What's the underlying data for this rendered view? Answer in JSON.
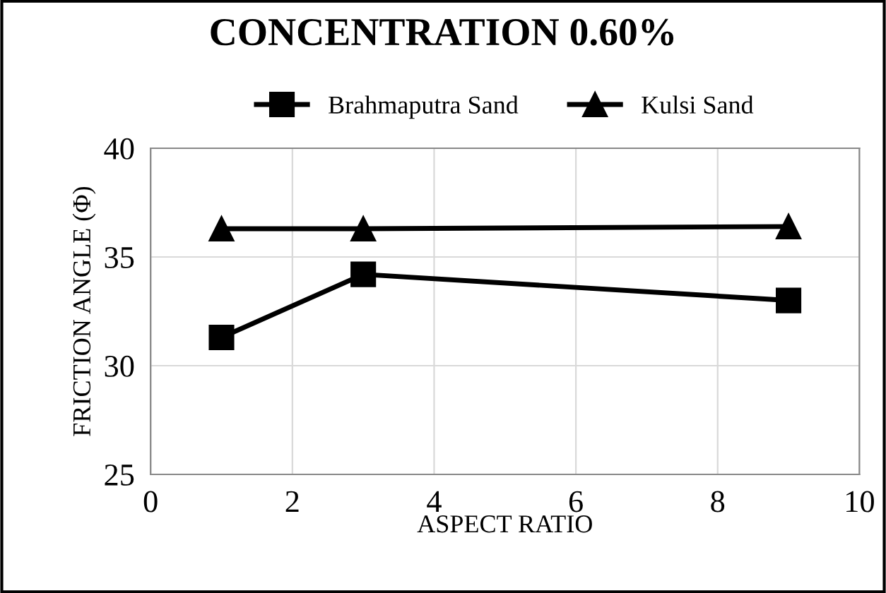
{
  "chart_data": {
    "type": "line",
    "title": "CONCENTRATION 0.60%",
    "xlabel": "ASPECT RATIO",
    "ylabel": "FRICTION ANGLE (Φ)",
    "x": [
      1,
      3,
      9
    ],
    "series": [
      {
        "name": "Brahmaputra Sand",
        "color": "#000000",
        "marker": "square",
        "values": [
          31.3,
          34.2,
          33.0
        ]
      },
      {
        "name": "Kulsi Sand",
        "color": "#000000",
        "marker": "triangle",
        "values": [
          36.3,
          36.3,
          36.4
        ]
      }
    ],
    "xlim": [
      0,
      10
    ],
    "xticks": [
      0,
      2,
      4,
      6,
      8,
      10
    ],
    "ylim": [
      25,
      40
    ],
    "yticks": [
      25,
      30,
      35,
      40
    ],
    "grid": true,
    "legend": "top",
    "line_style": "solid"
  }
}
